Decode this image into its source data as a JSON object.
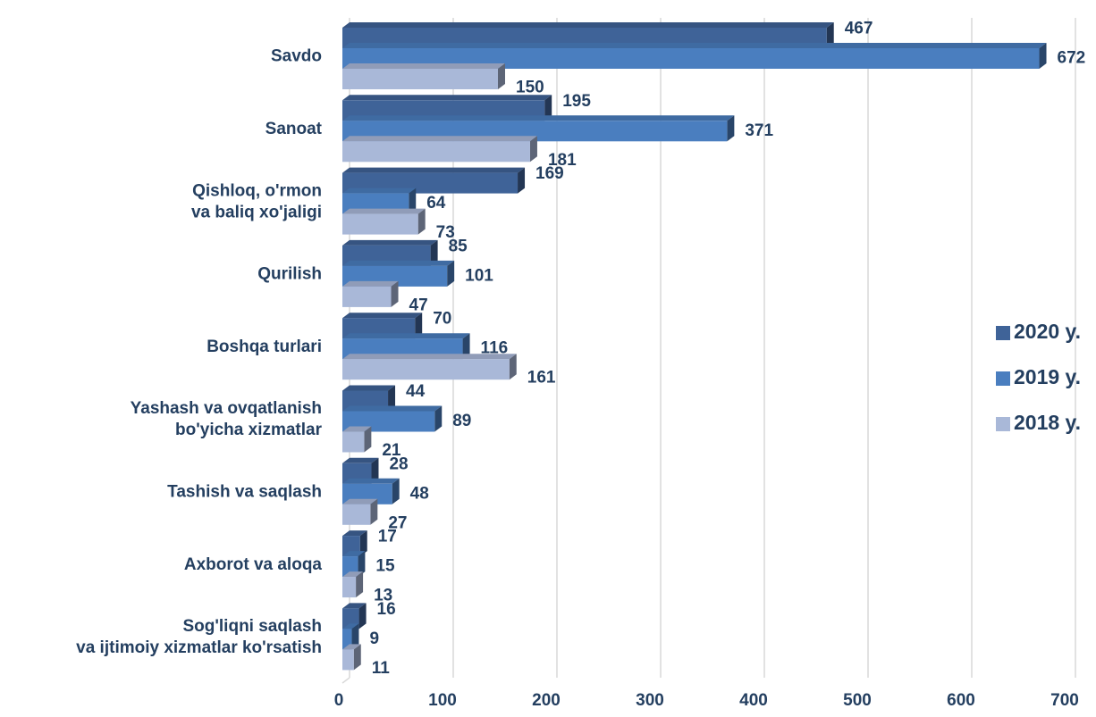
{
  "chart_data": {
    "type": "bar",
    "orientation": "horizontal",
    "categories": [
      "Savdo",
      "Sanoat",
      "Qishloq, o'rmon\nva baliq xo'jaligi",
      "Qurilish",
      "Boshqa turlari",
      "Yashash va ovqatlanish\nbo'yicha xizmatlar",
      "Tashish va saqlash",
      "Axborot va aloqa",
      "Sog'liqni saqlash\nva ijtimoiy xizmatlar ko'rsatish"
    ],
    "series": [
      {
        "name": "2020 y.",
        "color": "#3f6398",
        "values": [
          467,
          195,
          169,
          85,
          70,
          44,
          28,
          17,
          16
        ]
      },
      {
        "name": "2019 y.",
        "color": "#4a7ebf",
        "values": [
          672,
          371,
          64,
          101,
          116,
          89,
          48,
          15,
          9
        ]
      },
      {
        "name": "2018 y.",
        "color": "#a9b8d8",
        "values": [
          150,
          181,
          73,
          47,
          161,
          21,
          27,
          13,
          11
        ]
      }
    ],
    "xlim": [
      0,
      700
    ],
    "xticks": [
      0,
      100,
      200,
      300,
      400,
      500,
      600,
      700
    ],
    "grid": true,
    "legend": "right"
  }
}
